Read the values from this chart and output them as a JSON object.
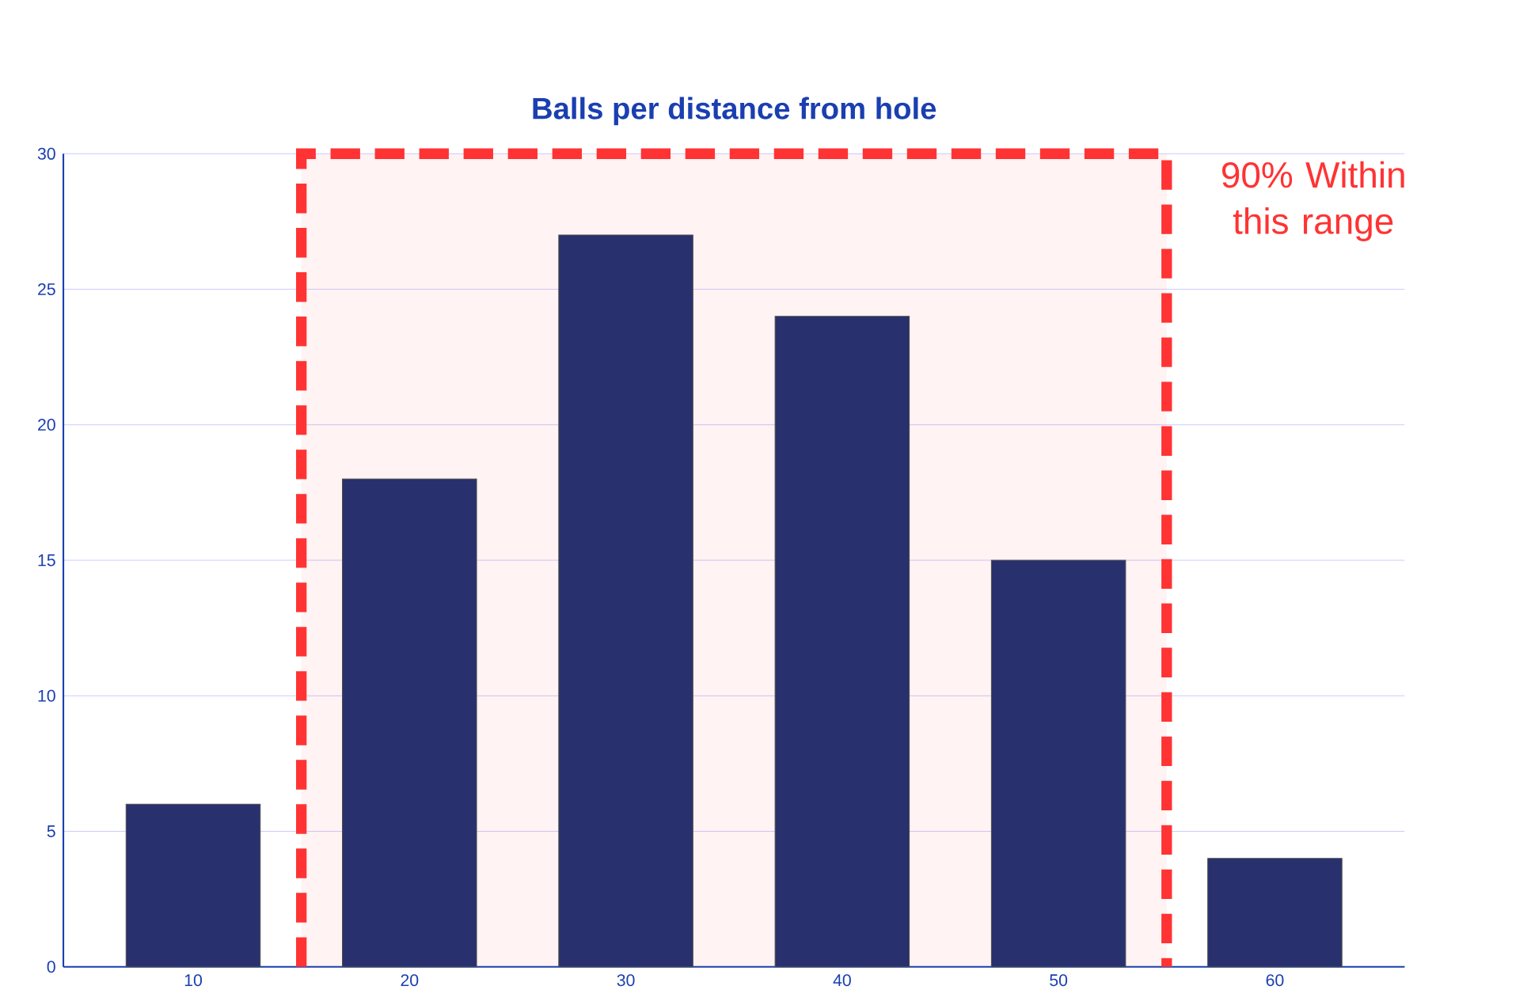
{
  "chart_data": {
    "type": "bar",
    "title": "Balls per distance from hole",
    "x": [
      10,
      20,
      30,
      40,
      50,
      60
    ],
    "values": [
      6,
      18,
      27,
      24,
      15,
      4
    ],
    "color": "#28306e",
    "xlim": [
      4,
      66
    ],
    "xticks": [
      10,
      20,
      30,
      40,
      50,
      60
    ],
    "ylim": [
      0,
      30
    ],
    "yticks": [
      0,
      5,
      10,
      15,
      20,
      25,
      30
    ],
    "grid": "y",
    "bands": [
      {
        "axis": "x",
        "from": 15,
        "to": 55,
        "label": "90% Within this range",
        "color": "#ff3333"
      }
    ]
  }
}
